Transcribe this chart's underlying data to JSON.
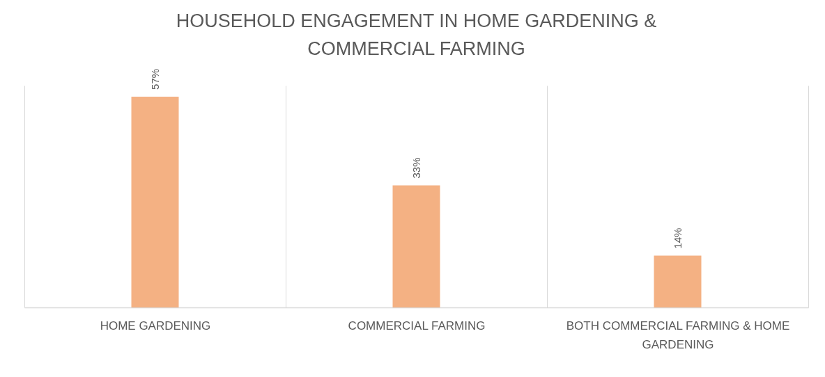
{
  "chart_data": {
    "type": "bar",
    "title": "HOUSEHOLD ENGAGEMENT IN HOME GARDENING & COMMERCIAL FARMING",
    "categories": [
      "HOME GARDENING",
      "COMMERCIAL FARMING",
      "BOTH COMMERCIAL FARMING & HOME GARDENING"
    ],
    "values": [
      57,
      33,
      14
    ],
    "value_labels": [
      "57%",
      "33%",
      "14%"
    ],
    "color": "#f4b183",
    "grid": "x"
  }
}
